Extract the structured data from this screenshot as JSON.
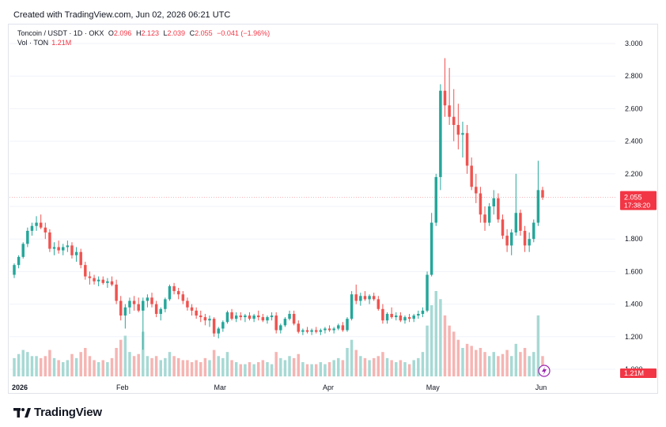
{
  "header": {
    "created_text": "Created with TradingView.com, Jun 02, 2026 06:21 UTC"
  },
  "legend": {
    "symbol": "Toncoin / USDT · 1D · OKX",
    "open_label": "O",
    "open": "2.096",
    "high_label": "H",
    "high": "2.123",
    "low_label": "L",
    "low": "2.039",
    "close_label": "C",
    "close": "2.055",
    "change": "−0.041 (−1.96%)",
    "vol_label": "Vol · TON",
    "vol_value": "1.21M"
  },
  "price_badge": {
    "price": "2.055",
    "countdown": "17:38:20"
  },
  "volume_badge": "1.21M",
  "branding": {
    "logo_text": "TradingView"
  },
  "colors": {
    "up": "#26a69a",
    "down": "#ef5350",
    "vol_up": "#a7d9d4",
    "vol_down": "#f5b5b3",
    "badge": "#f23645",
    "alert": "#9c27b0"
  },
  "chart_data": {
    "type": "candlestick",
    "symbol": "Toncoin / USDT",
    "interval": "1D",
    "exchange": "OKX",
    "ylim": [
      1.0,
      3.0
    ],
    "y_ticks": [
      "3.000",
      "2.800",
      "2.600",
      "2.400",
      "2.200",
      "2.000",
      "1.800",
      "1.600",
      "1.400",
      "1.200",
      "1.000"
    ],
    "x_ticks": [
      {
        "label": "2026",
        "day": 0
      },
      {
        "label": "Feb",
        "day": 31
      },
      {
        "label": "Mar",
        "day": 59
      },
      {
        "label": "Apr",
        "day": 90
      },
      {
        "label": "May",
        "day": 120
      },
      {
        "label": "Jun",
        "day": 151
      }
    ],
    "last_price": 2.055,
    "candles": [
      [
        1.58,
        1.65,
        1.56,
        1.64,
        9
      ],
      [
        1.64,
        1.7,
        1.62,
        1.69,
        11
      ],
      [
        1.69,
        1.78,
        1.68,
        1.77,
        13
      ],
      [
        1.77,
        1.87,
        1.75,
        1.85,
        12
      ],
      [
        1.85,
        1.9,
        1.82,
        1.88,
        10
      ],
      [
        1.88,
        1.94,
        1.85,
        1.9,
        10
      ],
      [
        1.9,
        1.95,
        1.86,
        1.87,
        9
      ],
      [
        1.87,
        1.9,
        1.8,
        1.84,
        10
      ],
      [
        1.84,
        1.86,
        1.72,
        1.74,
        13
      ],
      [
        1.74,
        1.78,
        1.7,
        1.75,
        9
      ],
      [
        1.75,
        1.79,
        1.71,
        1.73,
        8
      ],
      [
        1.73,
        1.77,
        1.7,
        1.75,
        7
      ],
      [
        1.75,
        1.79,
        1.72,
        1.76,
        8
      ],
      [
        1.76,
        1.78,
        1.68,
        1.7,
        11
      ],
      [
        1.7,
        1.75,
        1.66,
        1.72,
        9
      ],
      [
        1.72,
        1.74,
        1.62,
        1.64,
        12
      ],
      [
        1.64,
        1.66,
        1.55,
        1.57,
        14
      ],
      [
        1.57,
        1.6,
        1.52,
        1.56,
        10
      ],
      [
        1.56,
        1.58,
        1.52,
        1.54,
        8
      ],
      [
        1.54,
        1.57,
        1.51,
        1.55,
        7
      ],
      [
        1.55,
        1.57,
        1.52,
        1.53,
        8
      ],
      [
        1.53,
        1.56,
        1.5,
        1.54,
        7
      ],
      [
        1.54,
        1.57,
        1.51,
        1.52,
        9
      ],
      [
        1.52,
        1.55,
        1.4,
        1.42,
        14
      ],
      [
        1.42,
        1.45,
        1.3,
        1.33,
        18
      ],
      [
        1.33,
        1.4,
        1.25,
        1.38,
        20
      ],
      [
        1.38,
        1.44,
        1.34,
        1.42,
        12
      ],
      [
        1.42,
        1.45,
        1.36,
        1.4,
        10
      ],
      [
        1.4,
        1.44,
        1.35,
        1.36,
        11
      ],
      [
        1.36,
        1.44,
        1.12,
        1.42,
        22
      ],
      [
        1.42,
        1.46,
        1.38,
        1.44,
        10
      ],
      [
        1.44,
        1.47,
        1.38,
        1.4,
        9
      ],
      [
        1.4,
        1.42,
        1.32,
        1.34,
        10
      ],
      [
        1.34,
        1.38,
        1.3,
        1.37,
        8
      ],
      [
        1.37,
        1.44,
        1.35,
        1.43,
        9
      ],
      [
        1.43,
        1.52,
        1.42,
        1.51,
        12
      ],
      [
        1.51,
        1.53,
        1.46,
        1.48,
        10
      ],
      [
        1.48,
        1.5,
        1.43,
        1.46,
        9
      ],
      [
        1.46,
        1.48,
        1.4,
        1.42,
        8
      ],
      [
        1.42,
        1.44,
        1.36,
        1.38,
        8
      ],
      [
        1.38,
        1.4,
        1.33,
        1.36,
        7
      ],
      [
        1.36,
        1.38,
        1.31,
        1.33,
        8
      ],
      [
        1.33,
        1.36,
        1.29,
        1.32,
        7
      ],
      [
        1.32,
        1.34,
        1.27,
        1.3,
        9
      ],
      [
        1.3,
        1.33,
        1.26,
        1.31,
        8
      ],
      [
        1.31,
        1.32,
        1.2,
        1.22,
        13
      ],
      [
        1.22,
        1.26,
        1.19,
        1.25,
        10
      ],
      [
        1.25,
        1.3,
        1.23,
        1.29,
        9
      ],
      [
        1.29,
        1.36,
        1.28,
        1.35,
        12
      ],
      [
        1.35,
        1.37,
        1.3,
        1.31,
        8
      ],
      [
        1.31,
        1.35,
        1.29,
        1.33,
        7
      ],
      [
        1.33,
        1.35,
        1.3,
        1.32,
        6
      ],
      [
        1.32,
        1.34,
        1.29,
        1.33,
        6
      ],
      [
        1.33,
        1.35,
        1.3,
        1.31,
        7
      ],
      [
        1.31,
        1.34,
        1.29,
        1.33,
        6
      ],
      [
        1.33,
        1.36,
        1.3,
        1.32,
        7
      ],
      [
        1.32,
        1.34,
        1.29,
        1.3,
        8
      ],
      [
        1.3,
        1.33,
        1.28,
        1.32,
        7
      ],
      [
        1.32,
        1.35,
        1.3,
        1.33,
        6
      ],
      [
        1.33,
        1.35,
        1.22,
        1.24,
        12
      ],
      [
        1.24,
        1.28,
        1.22,
        1.27,
        9
      ],
      [
        1.27,
        1.32,
        1.26,
        1.31,
        8
      ],
      [
        1.31,
        1.36,
        1.3,
        1.34,
        10
      ],
      [
        1.34,
        1.36,
        1.27,
        1.28,
        9
      ],
      [
        1.28,
        1.3,
        1.22,
        1.23,
        11
      ],
      [
        1.23,
        1.25,
        1.21,
        1.24,
        7
      ],
      [
        1.24,
        1.26,
        1.22,
        1.23,
        6
      ],
      [
        1.23,
        1.25,
        1.21,
        1.24,
        6
      ],
      [
        1.24,
        1.26,
        1.22,
        1.23,
        6
      ],
      [
        1.23,
        1.25,
        1.21,
        1.24,
        7
      ],
      [
        1.24,
        1.26,
        1.22,
        1.25,
        6
      ],
      [
        1.25,
        1.27,
        1.23,
        1.24,
        7
      ],
      [
        1.24,
        1.26,
        1.22,
        1.25,
        8
      ],
      [
        1.25,
        1.28,
        1.24,
        1.27,
        9
      ],
      [
        1.27,
        1.29,
        1.23,
        1.24,
        8
      ],
      [
        1.24,
        1.32,
        1.23,
        1.31,
        14
      ],
      [
        1.31,
        1.48,
        1.3,
        1.46,
        18
      ],
      [
        1.46,
        1.52,
        1.4,
        1.42,
        13
      ],
      [
        1.42,
        1.47,
        1.39,
        1.45,
        10
      ],
      [
        1.45,
        1.48,
        1.42,
        1.43,
        9
      ],
      [
        1.43,
        1.46,
        1.4,
        1.45,
        8
      ],
      [
        1.45,
        1.47,
        1.42,
        1.43,
        9
      ],
      [
        1.43,
        1.45,
        1.36,
        1.37,
        10
      ],
      [
        1.37,
        1.4,
        1.28,
        1.3,
        12
      ],
      [
        1.3,
        1.35,
        1.28,
        1.34,
        9
      ],
      [
        1.34,
        1.38,
        1.31,
        1.32,
        8
      ],
      [
        1.32,
        1.35,
        1.3,
        1.33,
        7
      ],
      [
        1.33,
        1.35,
        1.29,
        1.3,
        8
      ],
      [
        1.3,
        1.33,
        1.28,
        1.32,
        7
      ],
      [
        1.32,
        1.34,
        1.29,
        1.31,
        6
      ],
      [
        1.31,
        1.34,
        1.29,
        1.33,
        8
      ],
      [
        1.33,
        1.36,
        1.31,
        1.34,
        9
      ],
      [
        1.34,
        1.38,
        1.32,
        1.36,
        12
      ],
      [
        1.36,
        1.6,
        1.35,
        1.58,
        25
      ],
      [
        1.58,
        1.96,
        1.57,
        1.9,
        35
      ],
      [
        1.9,
        2.2,
        1.88,
        2.18,
        42
      ],
      [
        2.18,
        2.75,
        2.1,
        2.71,
        38
      ],
      [
        2.71,
        2.91,
        2.55,
        2.62,
        30
      ],
      [
        2.62,
        2.85,
        2.5,
        2.55,
        25
      ],
      [
        2.55,
        2.72,
        2.4,
        2.5,
        22
      ],
      [
        2.5,
        2.63,
        2.35,
        2.44,
        18
      ],
      [
        2.44,
        2.52,
        2.3,
        2.45,
        14
      ],
      [
        2.45,
        2.5,
        2.2,
        2.25,
        16
      ],
      [
        2.25,
        2.3,
        2.1,
        2.12,
        15
      ],
      [
        2.12,
        2.2,
        2.02,
        2.08,
        13
      ],
      [
        2.08,
        2.12,
        1.9,
        1.95,
        14
      ],
      [
        1.95,
        2.0,
        1.85,
        1.9,
        12
      ],
      [
        1.9,
        2.02,
        1.88,
        2.0,
        10
      ],
      [
        2.0,
        2.1,
        1.95,
        2.05,
        12
      ],
      [
        2.05,
        2.08,
        1.9,
        1.92,
        10
      ],
      [
        1.92,
        1.95,
        1.8,
        1.82,
        11
      ],
      [
        1.82,
        1.86,
        1.72,
        1.76,
        13
      ],
      [
        1.76,
        1.86,
        1.7,
        1.84,
        10
      ],
      [
        1.84,
        2.2,
        1.82,
        1.96,
        16
      ],
      [
        1.96,
        1.98,
        1.82,
        1.85,
        12
      ],
      [
        1.85,
        1.88,
        1.72,
        1.76,
        14
      ],
      [
        1.76,
        1.84,
        1.72,
        1.8,
        10
      ],
      [
        1.8,
        1.92,
        1.78,
        1.9,
        12
      ],
      [
        1.9,
        2.28,
        1.88,
        2.1,
        30
      ],
      [
        2.1,
        2.12,
        2.04,
        2.055,
        10
      ]
    ]
  }
}
